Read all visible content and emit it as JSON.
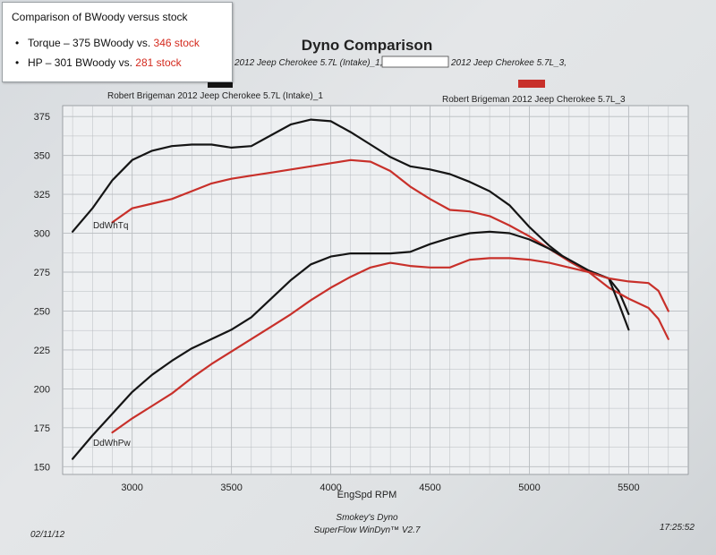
{
  "overlay": {
    "title": "Comparison of BWoody versus stock",
    "items": [
      {
        "bullet": "•",
        "lead": "Torque – 375 BWoody  vs. ",
        "red": "346 stock"
      },
      {
        "bullet": "•",
        "lead": "HP – 301 BWoody  vs. ",
        "red": "281 stock"
      }
    ]
  },
  "header": {
    "title": "Dyno Comparison",
    "run1": "2012 Jeep Cherokee 5.7L (Intake)_1,",
    "run2": "2012 Jeep Cherokee 5.7L_3,"
  },
  "footer": {
    "date": "02/11/12",
    "software_line1": "Smokey's Dyno",
    "software_line2": "SuperFlow WinDyn™ V2.7",
    "time": "17:25:52"
  },
  "colors": {
    "black_series": "#151515",
    "red_series": "#c8302a",
    "grid": "#b8bcc0",
    "overlay_red": "#d42a1e"
  },
  "chart_data": {
    "type": "line",
    "title": "Dyno Comparison",
    "xlabel": "EngSpd  RPM",
    "ylabel": "",
    "xlim": [
      2650,
      5800
    ],
    "ylim": [
      145,
      382
    ],
    "x_ticks": [
      3000,
      3500,
      4000,
      4500,
      5000,
      5500
    ],
    "y_ticks": [
      150,
      175,
      200,
      225,
      250,
      275,
      300,
      325,
      350,
      375
    ],
    "grid": true,
    "curve_labels": {
      "torque": "DdWhTq",
      "power": "DdWhPw"
    },
    "legend": [
      {
        "name": "Robert Brigeman 2012 Jeep Cherokee 5.7L (Intake)_1",
        "color": "#151515",
        "placement": "top-left"
      },
      {
        "name": "Robert Brigeman 2012 Jeep Cherokee 5.7L_3",
        "color": "#c8302a",
        "placement": "top-right"
      }
    ],
    "series": [
      {
        "name": "Robert Brigeman 2012 Jeep Cherokee 5.7L (Intake)_1",
        "color": "#151515",
        "quantity": "DdWhTq",
        "points": [
          [
            2700,
            301
          ],
          [
            2800,
            316
          ],
          [
            2900,
            334
          ],
          [
            3000,
            347
          ],
          [
            3100,
            353
          ],
          [
            3200,
            356
          ],
          [
            3300,
            357
          ],
          [
            3400,
            357
          ],
          [
            3500,
            355
          ],
          [
            3600,
            356
          ],
          [
            3700,
            363
          ],
          [
            3800,
            370
          ],
          [
            3900,
            373
          ],
          [
            4000,
            372
          ],
          [
            4100,
            365
          ],
          [
            4200,
            357
          ],
          [
            4300,
            349
          ],
          [
            4400,
            343
          ],
          [
            4500,
            341
          ],
          [
            4600,
            338
          ],
          [
            4700,
            333
          ],
          [
            4800,
            327
          ],
          [
            4900,
            318
          ],
          [
            5000,
            304
          ],
          [
            5100,
            292
          ],
          [
            5200,
            282
          ],
          [
            5300,
            275
          ],
          [
            5400,
            271
          ],
          [
            5450,
            263
          ],
          [
            5500,
            248
          ]
        ]
      },
      {
        "name": "Robert Brigeman 2012 Jeep Cherokee 5.7L_3",
        "color": "#c8302a",
        "quantity": "DdWhTq",
        "points": [
          [
            2900,
            307
          ],
          [
            3000,
            316
          ],
          [
            3100,
            319
          ],
          [
            3200,
            322
          ],
          [
            3300,
            327
          ],
          [
            3400,
            332
          ],
          [
            3500,
            335
          ],
          [
            3600,
            337
          ],
          [
            3700,
            339
          ],
          [
            3800,
            341
          ],
          [
            3900,
            343
          ],
          [
            4000,
            345
          ],
          [
            4100,
            347
          ],
          [
            4200,
            346
          ],
          [
            4300,
            340
          ],
          [
            4400,
            330
          ],
          [
            4500,
            322
          ],
          [
            4600,
            315
          ],
          [
            4700,
            314
          ],
          [
            4800,
            311
          ],
          [
            4900,
            305
          ],
          [
            5000,
            298
          ],
          [
            5100,
            290
          ],
          [
            5200,
            282
          ],
          [
            5300,
            275
          ],
          [
            5400,
            265
          ],
          [
            5500,
            258
          ],
          [
            5600,
            252
          ],
          [
            5650,
            245
          ],
          [
            5700,
            232
          ]
        ]
      },
      {
        "name": "Robert Brigeman 2012 Jeep Cherokee 5.7L (Intake)_1",
        "color": "#151515",
        "quantity": "DdWhPw",
        "points": [
          [
            2700,
            155
          ],
          [
            2800,
            170
          ],
          [
            2900,
            184
          ],
          [
            3000,
            198
          ],
          [
            3100,
            209
          ],
          [
            3200,
            218
          ],
          [
            3300,
            226
          ],
          [
            3400,
            232
          ],
          [
            3500,
            238
          ],
          [
            3600,
            246
          ],
          [
            3700,
            258
          ],
          [
            3800,
            270
          ],
          [
            3900,
            280
          ],
          [
            4000,
            285
          ],
          [
            4100,
            287
          ],
          [
            4200,
            287
          ],
          [
            4300,
            287
          ],
          [
            4400,
            288
          ],
          [
            4500,
            293
          ],
          [
            4600,
            297
          ],
          [
            4700,
            300
          ],
          [
            4800,
            301
          ],
          [
            4900,
            300
          ],
          [
            5000,
            296
          ],
          [
            5100,
            290
          ],
          [
            5200,
            283
          ],
          [
            5300,
            276
          ],
          [
            5400,
            271
          ],
          [
            5450,
            255
          ],
          [
            5500,
            238
          ]
        ]
      },
      {
        "name": "Robert Brigeman 2012 Jeep Cherokee 5.7L_3",
        "color": "#c8302a",
        "quantity": "DdWhPw",
        "points": [
          [
            2900,
            172
          ],
          [
            3000,
            181
          ],
          [
            3100,
            189
          ],
          [
            3200,
            197
          ],
          [
            3300,
            207
          ],
          [
            3400,
            216
          ],
          [
            3500,
            224
          ],
          [
            3600,
            232
          ],
          [
            3700,
            240
          ],
          [
            3800,
            248
          ],
          [
            3900,
            257
          ],
          [
            4000,
            265
          ],
          [
            4100,
            272
          ],
          [
            4200,
            278
          ],
          [
            4300,
            281
          ],
          [
            4400,
            279
          ],
          [
            4500,
            278
          ],
          [
            4600,
            278
          ],
          [
            4700,
            283
          ],
          [
            4800,
            284
          ],
          [
            4900,
            284
          ],
          [
            5000,
            283
          ],
          [
            5100,
            281
          ],
          [
            5200,
            278
          ],
          [
            5300,
            275
          ],
          [
            5400,
            271
          ],
          [
            5500,
            269
          ],
          [
            5600,
            268
          ],
          [
            5650,
            263
          ],
          [
            5700,
            250
          ]
        ]
      }
    ]
  }
}
